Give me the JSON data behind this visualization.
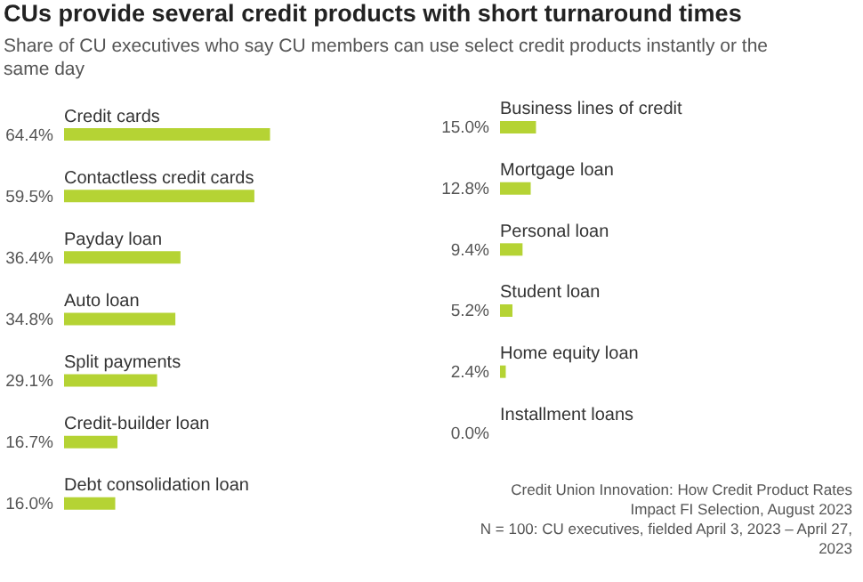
{
  "chart_data": [
    {
      "type": "bar",
      "orientation": "horizontal",
      "title": "CUs provide several credit products with short turnaround times",
      "subtitle": "Share of CU executives who say CU members can use select credit products instantly or the same day",
      "categories": [
        "Credit cards",
        "Contactless credit cards",
        "Payday loan",
        "Auto loan",
        "Split payments",
        "Credit-builder loan",
        "Debt consolidation loan"
      ],
      "values": [
        64.4,
        59.5,
        36.4,
        34.8,
        29.1,
        16.7,
        16.0
      ],
      "color": "#b5d334",
      "value_labels": [
        "64.4%",
        "59.5%",
        "36.4%",
        "34.8%",
        "29.1%",
        "16.7%",
        "16.0%"
      ]
    },
    {
      "type": "bar",
      "orientation": "horizontal",
      "categories": [
        "Business lines of credit",
        "Mortgage loan",
        "Personal loan",
        "Student loan",
        "Home equity loan",
        "Installment loans"
      ],
      "values": [
        15.0,
        12.8,
        9.4,
        5.2,
        2.4,
        0.0
      ],
      "color": "#b5d334",
      "value_labels": [
        "15.0%",
        "12.8%",
        "9.4%",
        "5.2%",
        "2.4%",
        "0.0%"
      ],
      "annotations": [
        "Credit Union Innovation: How Credit Product Rates Impact FI Selection, August 2023",
        "N = 100: CU executives, fielded April 3, 2023 – April 27, 2023"
      ]
    }
  ]
}
